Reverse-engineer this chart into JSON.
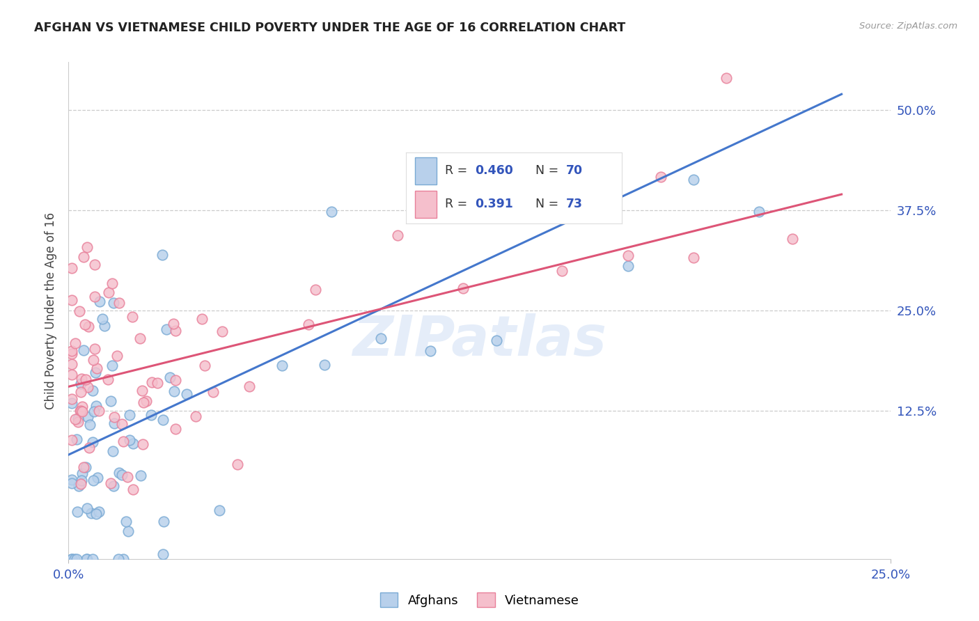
{
  "title": "AFGHAN VS VIETNAMESE CHILD POVERTY UNDER THE AGE OF 16 CORRELATION CHART",
  "source": "Source: ZipAtlas.com",
  "ylabel_label": "Child Poverty Under the Age of 16",
  "xlim": [
    0.0,
    0.25
  ],
  "ylim": [
    -0.06,
    0.56
  ],
  "afghan_color": "#b8d0eb",
  "afghan_edge": "#7aaad4",
  "vietnamese_color": "#f5bfcc",
  "vietnamese_edge": "#e8809a",
  "trendline_afghan": "#4477cc",
  "trendline_vietnamese": "#dd5577",
  "legend_R_afghan": "0.460",
  "legend_N_afghan": "70",
  "legend_R_vietnamese": "0.391",
  "legend_N_vietnamese": "73",
  "watermark": "ZIPatlas",
  "legend_labels": [
    "Afghans",
    "Vietnamese"
  ],
  "ytick_vals": [
    0.125,
    0.25,
    0.375,
    0.5
  ],
  "ytick_labels": [
    "12.5%",
    "25.0%",
    "37.5%",
    "50.0%"
  ],
  "xtick_vals": [
    0.0,
    0.25
  ],
  "xtick_labels": [
    "0.0%",
    "25.0%"
  ],
  "grid_color": "#cccccc",
  "grid_style": "--",
  "bg_color": "#ffffff",
  "title_color": "#222222",
  "source_color": "#999999",
  "tick_color": "#3355bb",
  "ylabel_color": "#444444",
  "marker_size": 110,
  "marker_lw": 1.2,
  "marker_alpha": 0.82,
  "trendline_lw": 2.2
}
